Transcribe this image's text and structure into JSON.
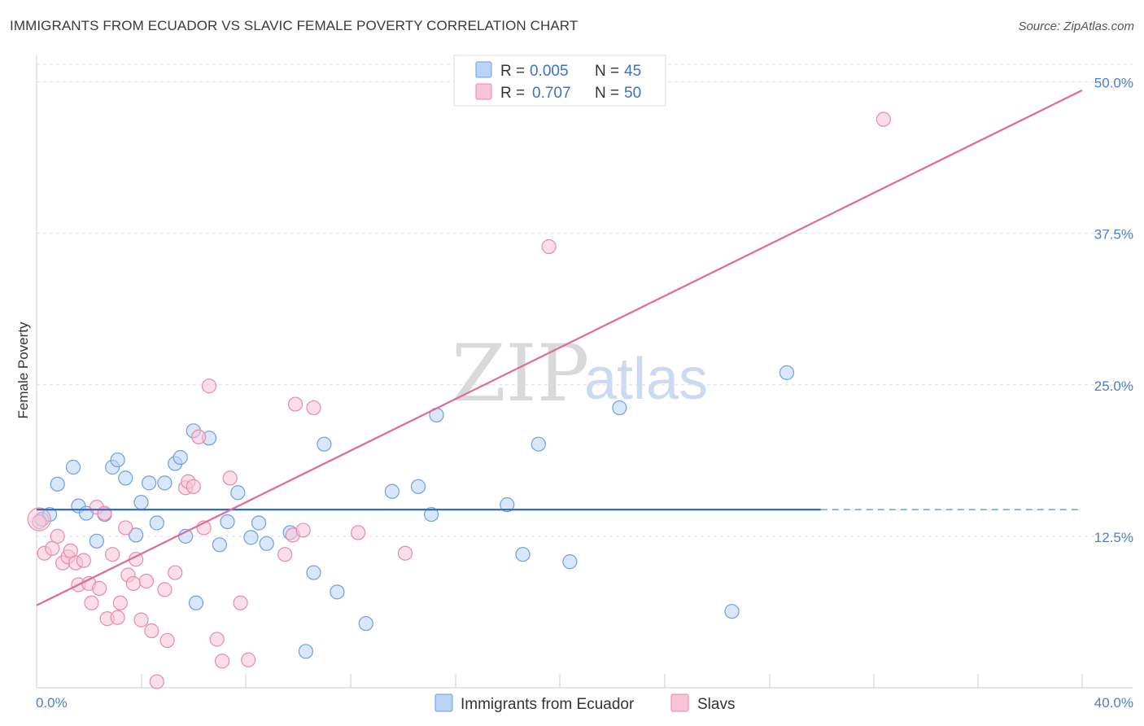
{
  "header": {
    "title": "IMMIGRANTS FROM ECUADOR VS SLAVIC FEMALE POVERTY CORRELATION CHART",
    "source": "Source: ZipAtlas.com"
  },
  "watermark": {
    "zip": "ZIP",
    "atlas": "atlas"
  },
  "colors": {
    "blue_fill": "#b9d3f5",
    "blue_stroke": "#6f9fdc",
    "blue_line": "#2c6fcf",
    "pink_fill": "#f7c4d4",
    "pink_stroke": "#e98aa8",
    "pink_line": "#e06a93"
  },
  "chart_data": {
    "type": "scatter",
    "title": "IMMIGRANTS FROM ECUADOR VS SLAVIC FEMALE POVERTY CORRELATION CHART",
    "xlabel": "",
    "ylabel": "Female Poverty",
    "xlim": [
      0,
      40
    ],
    "ylim": [
      0,
      50
    ],
    "x_tick_labels": [
      "0.0%",
      "40.0%"
    ],
    "y_ticks": [
      12.5,
      25.0,
      37.5,
      50.0
    ],
    "y_tick_labels": [
      "12.5%",
      "25.0%",
      "37.5%",
      "50.0%"
    ],
    "grid": true,
    "legend_position": "top-center",
    "legend": [
      {
        "swatch": "blue",
        "r_label": "R =",
        "r_value": "0.005",
        "n_label": "N =",
        "n_value": "45"
      },
      {
        "swatch": "pink",
        "r_label": "R =",
        "r_value": "0.707",
        "n_label": "N =",
        "n_value": "50"
      }
    ],
    "bottom_legend": [
      "Immigrants from Ecuador",
      "Slavs"
    ],
    "series": [
      {
        "name": "Immigrants from Ecuador",
        "color": "blue",
        "trend": {
          "x": [
            0,
            30.0
          ],
          "y": [
            14.7,
            14.7
          ],
          "dashed_to": 40
        },
        "points": [
          [
            0.2,
            13.9
          ],
          [
            0.5,
            14.3
          ],
          [
            0.8,
            16.8
          ],
          [
            1.4,
            18.2
          ],
          [
            1.6,
            15.0
          ],
          [
            1.9,
            14.4
          ],
          [
            2.3,
            12.1
          ],
          [
            2.6,
            14.3
          ],
          [
            2.9,
            18.2
          ],
          [
            3.1,
            18.8
          ],
          [
            3.4,
            17.3
          ],
          [
            3.8,
            12.6
          ],
          [
            4.0,
            15.3
          ],
          [
            4.3,
            16.9
          ],
          [
            4.6,
            13.6
          ],
          [
            4.9,
            16.9
          ],
          [
            5.3,
            18.5
          ],
          [
            5.5,
            19.0
          ],
          [
            5.7,
            12.5
          ],
          [
            6.1,
            7.0
          ],
          [
            6.0,
            21.2
          ],
          [
            6.6,
            20.6
          ],
          [
            7.0,
            11.8
          ],
          [
            7.3,
            13.7
          ],
          [
            7.7,
            16.1
          ],
          [
            8.2,
            12.4
          ],
          [
            8.5,
            13.6
          ],
          [
            8.8,
            11.9
          ],
          [
            9.7,
            12.8
          ],
          [
            10.3,
            3.0
          ],
          [
            10.6,
            9.5
          ],
          [
            11.0,
            20.1
          ],
          [
            11.5,
            7.9
          ],
          [
            12.6,
            5.3
          ],
          [
            13.6,
            16.2
          ],
          [
            14.6,
            16.6
          ],
          [
            15.1,
            14.3
          ],
          [
            15.3,
            22.5
          ],
          [
            18.0,
            15.1
          ],
          [
            18.6,
            11.0
          ],
          [
            19.2,
            20.1
          ],
          [
            20.4,
            10.4
          ],
          [
            22.3,
            23.1
          ],
          [
            26.6,
            6.3
          ],
          [
            28.7,
            26.0
          ]
        ]
      },
      {
        "name": "Slavs",
        "color": "pink",
        "trend": {
          "x": [
            0,
            40
          ],
          "y": [
            6.8,
            49.3
          ]
        },
        "points": [
          [
            0.1,
            13.7
          ],
          [
            0.3,
            11.1
          ],
          [
            0.6,
            11.5
          ],
          [
            0.8,
            12.5
          ],
          [
            1.0,
            10.3
          ],
          [
            1.2,
            10.8
          ],
          [
            1.3,
            11.3
          ],
          [
            1.5,
            10.3
          ],
          [
            1.6,
            8.5
          ],
          [
            1.8,
            10.5
          ],
          [
            2.0,
            8.6
          ],
          [
            2.1,
            7.0
          ],
          [
            2.3,
            14.9
          ],
          [
            2.4,
            8.2
          ],
          [
            2.6,
            14.4
          ],
          [
            2.7,
            5.7
          ],
          [
            2.9,
            11.0
          ],
          [
            3.1,
            5.8
          ],
          [
            3.2,
            7.0
          ],
          [
            3.4,
            13.2
          ],
          [
            3.5,
            9.3
          ],
          [
            3.7,
            8.6
          ],
          [
            3.8,
            10.6
          ],
          [
            4.0,
            5.6
          ],
          [
            4.2,
            8.8
          ],
          [
            4.4,
            4.7
          ],
          [
            4.6,
            0.5
          ],
          [
            4.9,
            8.1
          ],
          [
            5.0,
            3.9
          ],
          [
            5.3,
            9.5
          ],
          [
            5.7,
            16.5
          ],
          [
            5.8,
            17.0
          ],
          [
            6.0,
            16.6
          ],
          [
            6.2,
            20.7
          ],
          [
            6.4,
            13.2
          ],
          [
            6.6,
            24.9
          ],
          [
            6.9,
            4.0
          ],
          [
            7.1,
            2.2
          ],
          [
            7.4,
            17.3
          ],
          [
            7.8,
            7.0
          ],
          [
            8.1,
            2.3
          ],
          [
            9.5,
            11.0
          ],
          [
            9.8,
            12.6
          ],
          [
            9.9,
            23.4
          ],
          [
            10.2,
            13.0
          ],
          [
            10.6,
            23.1
          ],
          [
            12.3,
            12.8
          ],
          [
            14.1,
            11.1
          ],
          [
            19.6,
            36.4
          ],
          [
            32.4,
            46.9
          ]
        ]
      }
    ]
  }
}
